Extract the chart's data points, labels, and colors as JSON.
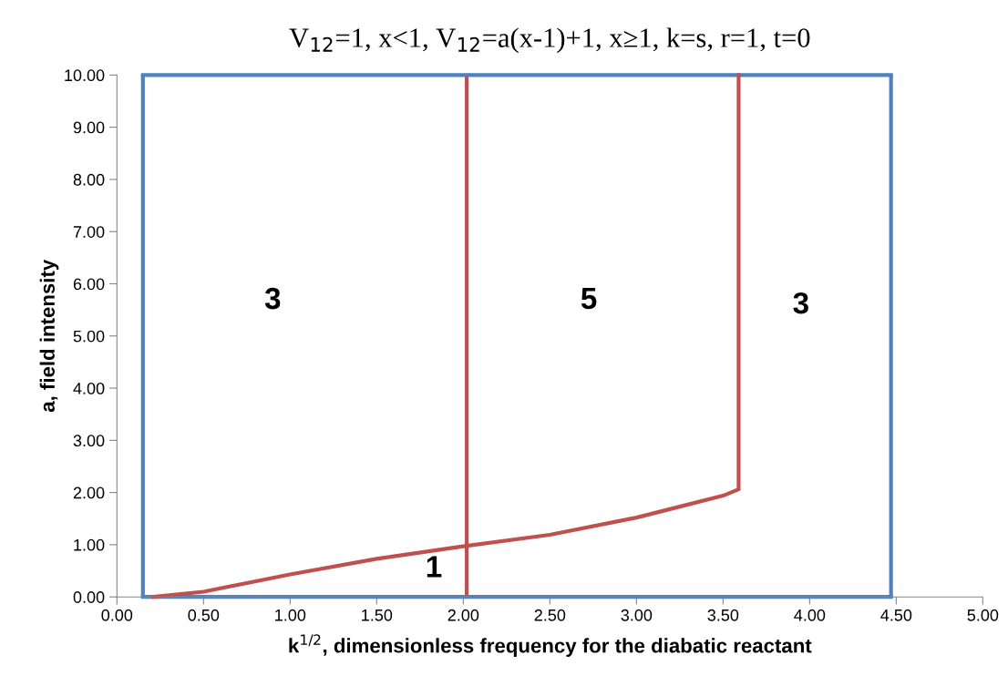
{
  "chart_data": {
    "type": "line",
    "title": "V$_{12}$=1, x<1, V$_{12}$=a(x-1)+1, x≥1, k=s, r=1, t=0",
    "xlabel": "k$^{1/2}$, dimensionless frequency for the diabatic reactant",
    "ylabel": "a, field intensity",
    "series": [
      {
        "color": "#4f81bd",
        "x": [
          0.15,
          4.47
        ],
        "values": [
          10,
          10
        ]
      },
      {
        "color": "#4f81bd",
        "x": [
          0.15,
          4.47
        ],
        "values": [
          0,
          0
        ]
      },
      {
        "color": "#c0504d",
        "x": [
          0.21,
          0.5,
          1.0,
          1.5,
          2.0,
          2.5,
          3.0,
          3.5,
          3.59,
          3.59
        ],
        "values": [
          0,
          0.1,
          0.43,
          0.73,
          0.97,
          1.19,
          1.52,
          1.94,
          2.06,
          10
        ]
      }
    ],
    "ref_lines": [
      {
        "axis": "x",
        "value": 0.15,
        "color": "#4f81bd",
        "line_style": "solid"
      },
      {
        "axis": "x",
        "value": 4.47,
        "color": "#4f81bd",
        "line_style": "solid"
      },
      {
        "axis": "x",
        "value": 2.02,
        "color": "#c0504d",
        "line_style": "solid"
      }
    ],
    "xlim": [
      0,
      5
    ],
    "ylim": [
      0,
      10
    ],
    "xticks": [
      {
        "value": 0,
        "label": "0.00"
      },
      {
        "value": 0.5,
        "label": "0.50"
      },
      {
        "value": 1,
        "label": "1.00"
      },
      {
        "value": 1.5,
        "label": "1.50"
      },
      {
        "value": 2,
        "label": "2.00"
      },
      {
        "value": 2.5,
        "label": "2.50"
      },
      {
        "value": 3,
        "label": "3.00"
      },
      {
        "value": 3.5,
        "label": "3.50"
      },
      {
        "value": 4,
        "label": "4.00"
      },
      {
        "value": 4.5,
        "label": "4.50"
      },
      {
        "value": 5,
        "label": "5.00"
      }
    ],
    "yticks": [
      {
        "value": 0,
        "label": "0.00"
      },
      {
        "value": 1,
        "label": "1.00"
      },
      {
        "value": 2,
        "label": "2.00"
      },
      {
        "value": 3,
        "label": "3.00"
      },
      {
        "value": 4,
        "label": "4.00"
      },
      {
        "value": 5,
        "label": "5.00"
      },
      {
        "value": 6,
        "label": "6.00"
      },
      {
        "value": 7,
        "label": "7.00"
      },
      {
        "value": 8,
        "label": "8.00"
      },
      {
        "value": 9,
        "label": "9.00"
      },
      {
        "value": 10,
        "label": "10.00"
      }
    ],
    "annotations": [
      "3",
      "5",
      "3",
      "1"
    ],
    "grid": false,
    "marker": "none",
    "line_style": "solid"
  }
}
